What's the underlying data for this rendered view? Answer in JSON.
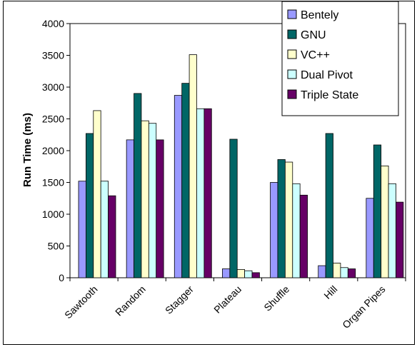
{
  "chart_data": {
    "type": "bar",
    "title": "",
    "xlabel": "",
    "ylabel": "Run Time (ms)",
    "ylim": [
      0,
      4000
    ],
    "yticks": [
      0,
      500,
      1000,
      1500,
      2000,
      2500,
      3000,
      3500,
      4000
    ],
    "grid": false,
    "legend_position": "top-right",
    "categories": [
      "Sawtooth",
      "Random",
      "Stagger",
      "Plateau",
      "Shuffle",
      "Hill",
      "Organ Pipes"
    ],
    "series": [
      {
        "name": "Bentely",
        "color": "#9999FF",
        "values": [
          1520,
          2170,
          2870,
          140,
          1500,
          190,
          1250
        ]
      },
      {
        "name": "GNU",
        "color": "#006666",
        "values": [
          2270,
          2900,
          3060,
          2180,
          1860,
          2270,
          2090
        ]
      },
      {
        "name": "VC++",
        "color": "#FFFFCC",
        "values": [
          2630,
          2470,
          3510,
          130,
          1820,
          230,
          1760
        ]
      },
      {
        "name": "Dual Pivot",
        "color": "#CCFFFF",
        "values": [
          1520,
          2430,
          2660,
          110,
          1480,
          160,
          1480
        ]
      },
      {
        "name": "Triple State",
        "color": "#660066",
        "values": [
          1290,
          2170,
          2660,
          80,
          1300,
          140,
          1190
        ]
      }
    ]
  }
}
